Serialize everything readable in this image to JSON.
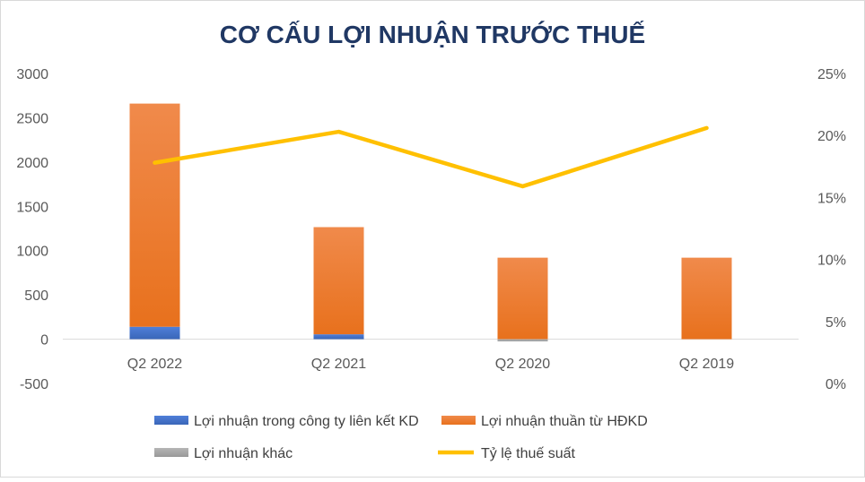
{
  "chart_data": {
    "type": "bar",
    "title": "CƠ CẤU LỢI NHUẬN TRƯỚC THUẾ",
    "categories": [
      "Q2 2022",
      "Q2 2021",
      "Q2 2020",
      "Q2 2019"
    ],
    "stacked": true,
    "series": [
      {
        "name": "Lợi nhuận trong công ty liên kết KD",
        "type": "bar",
        "axis": "left",
        "color": "#4472C4",
        "values": [
          140,
          55,
          0,
          0
        ]
      },
      {
        "name": "Lợi nhuận thuần từ HĐKD",
        "type": "bar",
        "axis": "left",
        "color": "#ED7D31",
        "values": [
          2520,
          1210,
          920,
          920
        ]
      },
      {
        "name": "Lợi nhuận khác",
        "type": "bar",
        "axis": "left",
        "color": "#A5A5A5",
        "values": [
          0,
          0,
          -25,
          0
        ]
      },
      {
        "name": "Tỷ lệ thuế suất",
        "type": "line",
        "axis": "right",
        "color": "#FFC000",
        "values": [
          0.178,
          0.203,
          0.159,
          0.206
        ]
      }
    ],
    "y_left": {
      "min": -500,
      "max": 3000,
      "ticks": [
        "-500",
        "0",
        "500",
        "1000",
        "1500",
        "2000",
        "2500",
        "3000"
      ]
    },
    "y_right": {
      "min": 0,
      "max": 0.25,
      "ticks": [
        "0%",
        "5%",
        "10%",
        "15%",
        "20%",
        "25%"
      ]
    },
    "grid": false,
    "legend_position": "bottom"
  }
}
